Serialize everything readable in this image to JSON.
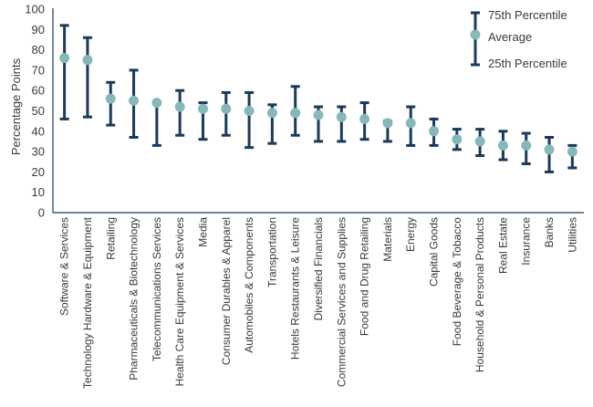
{
  "chart_data": {
    "type": "range",
    "ylabel": "Percentage Points",
    "ylim": [
      0,
      100
    ],
    "yticks": [
      0,
      10,
      20,
      30,
      40,
      50,
      60,
      70,
      80,
      90,
      100
    ],
    "categories": [
      "Software & Services",
      "Technology Hardware & Equipment",
      "Retailing",
      "Pharmaceuticals & Biotechnology",
      "Telecommunications Services",
      "Health Care Equipment & Services",
      "Media",
      "Consumer Durables & Apparel",
      "Automobiles & Components",
      "Transportation",
      "Hotels Restaurants & Leisure",
      "Diversified Financials",
      "Commercial Services and Supplies",
      "Food and Drug Retailing",
      "Materials",
      "Energy",
      "Capital Goods",
      "Food Beverage & Tobacco",
      "Household & Personal Products",
      "Real Estate",
      "Insurance",
      "Banks",
      "Utilities"
    ],
    "series": [
      {
        "name": "75th Percentile",
        "values": [
          92,
          86,
          64,
          70,
          54,
          60,
          54,
          59,
          59,
          53,
          62,
          52,
          52,
          54,
          45,
          52,
          46,
          41,
          41,
          40,
          39,
          37,
          33
        ]
      },
      {
        "name": "Average",
        "values": [
          76,
          75,
          56,
          55,
          54,
          52,
          51,
          51,
          50,
          49,
          49,
          48,
          47,
          46,
          44,
          44,
          40,
          36,
          35,
          33,
          33,
          31,
          30
        ]
      },
      {
        "name": "25th Percentile",
        "values": [
          46,
          47,
          43,
          37,
          33,
          38,
          36,
          38,
          32,
          34,
          38,
          35,
          35,
          36,
          35,
          33,
          33,
          31,
          28,
          26,
          24,
          20,
          22
        ]
      }
    ],
    "colors": {
      "range": "#1b3a5c",
      "average": "#86b8b8",
      "axis": "#1b3a5c"
    },
    "legend_position": "top-right"
  }
}
